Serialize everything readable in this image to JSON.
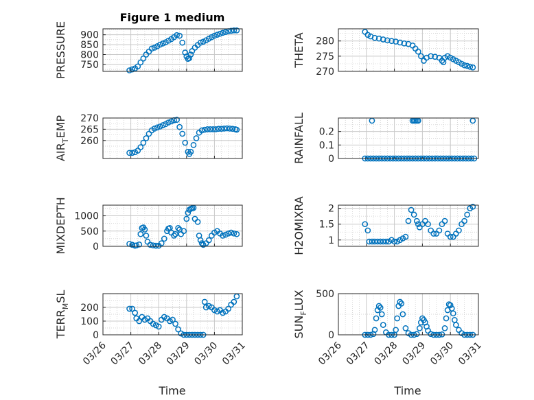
{
  "figure": {
    "title": "Figure 1 medium",
    "xlabel": "Time"
  },
  "colors": {
    "marker": "#0072BD",
    "axis": "#262626",
    "grid": "#c8c8c8"
  },
  "chart_data": [
    {
      "type": "scatter",
      "title": "Figure 1 medium",
      "ylabel": "PRESSURE",
      "ylim": [
        715,
        930
      ],
      "yticks": [
        750,
        800,
        850,
        900
      ],
      "xlim": [
        26,
        31
      ],
      "x": [
        26.95,
        27.05,
        27.15,
        27.25,
        27.35,
        27.45,
        27.55,
        27.65,
        27.75,
        27.85,
        27.95,
        28.05,
        28.15,
        28.25,
        28.35,
        28.45,
        28.55,
        28.65,
        28.75,
        28.85,
        28.95,
        29.0,
        29.05,
        29.1,
        29.15,
        29.2,
        29.3,
        29.4,
        29.5,
        29.6,
        29.7,
        29.8,
        29.9,
        30.0,
        30.1,
        30.2,
        30.3,
        30.4,
        30.5,
        30.6,
        30.7,
        30.8
      ],
      "values": [
        720,
        725,
        730,
        740,
        760,
        780,
        800,
        815,
        830,
        835,
        842,
        850,
        856,
        862,
        870,
        878,
        888,
        898,
        895,
        860,
        810,
        790,
        778,
        782,
        800,
        818,
        835,
        848,
        860,
        865,
        872,
        880,
        888,
        895,
        900,
        905,
        910,
        914,
        918,
        920,
        922,
        922
      ]
    },
    {
      "type": "scatter",
      "ylabel": "THETA",
      "ylim": [
        270,
        284
      ],
      "yticks": [
        270,
        275,
        280
      ],
      "xlim": [
        26,
        31
      ],
      "x": [
        26.95,
        27.05,
        27.15,
        27.3,
        27.45,
        27.6,
        27.75,
        27.9,
        28.05,
        28.2,
        28.35,
        28.5,
        28.65,
        28.75,
        28.85,
        28.95,
        29.05,
        29.15,
        29.3,
        29.45,
        29.6,
        29.7,
        29.75,
        29.8,
        29.9,
        30.0,
        30.1,
        30.2,
        30.3,
        30.4,
        30.5,
        30.6,
        30.7,
        30.8
      ],
      "values": [
        283,
        282,
        281.5,
        281,
        280.8,
        280.5,
        280.2,
        280,
        279.8,
        279.5,
        279.2,
        279,
        278.5,
        277.5,
        276.5,
        275,
        273.5,
        274.5,
        275,
        274.8,
        274.5,
        273.5,
        273,
        274.5,
        275,
        274.5,
        274,
        273.5,
        273,
        272.5,
        272,
        271.8,
        271.5,
        271.3
      ]
    },
    {
      "type": "scatter",
      "ylabel": "AIR_TEMP",
      "ylim": [
        252,
        270
      ],
      "yticks": [
        260,
        265,
        270
      ],
      "xlim": [
        26,
        31
      ],
      "x": [
        26.95,
        27.05,
        27.15,
        27.25,
        27.35,
        27.45,
        27.55,
        27.65,
        27.75,
        27.85,
        27.95,
        28.05,
        28.15,
        28.25,
        28.35,
        28.45,
        28.55,
        28.65,
        28.75,
        28.85,
        28.95,
        29.05,
        29.1,
        29.15,
        29.25,
        29.35,
        29.45,
        29.55,
        29.65,
        29.75,
        29.85,
        29.95,
        30.05,
        30.15,
        30.25,
        30.35,
        30.45,
        30.55,
        30.65,
        30.75,
        30.8
      ],
      "values": [
        254.5,
        254.5,
        254.8,
        255.5,
        257,
        259,
        261,
        263,
        264.5,
        265.3,
        265.8,
        266.2,
        266.8,
        267.3,
        268,
        268.5,
        269,
        269.2,
        266,
        263,
        259,
        255,
        254,
        255,
        258,
        261,
        263.5,
        264.5,
        264.8,
        265,
        265,
        265,
        265,
        265.2,
        265.2,
        265.3,
        265.4,
        265.3,
        265.2,
        265,
        264.8
      ]
    },
    {
      "type": "scatter",
      "ylabel": "RAINFALL",
      "ylim": [
        0,
        0.3
      ],
      "yticks": [
        0,
        0.1,
        0.2
      ],
      "xlim": [
        26,
        31
      ],
      "x": [
        26.95,
        27.05,
        27.15,
        27.25,
        27.35,
        27.45,
        27.55,
        27.65,
        27.75,
        27.85,
        27.95,
        28.05,
        28.15,
        28.25,
        28.35,
        28.45,
        28.55,
        28.65,
        28.75,
        28.85,
        28.95,
        29.05,
        29.15,
        29.25,
        29.35,
        29.45,
        29.55,
        29.65,
        29.75,
        29.85,
        29.95,
        30.05,
        30.15,
        30.25,
        30.35,
        30.45,
        30.55,
        30.65,
        30.75,
        30.85,
        27.2,
        28.65,
        28.7,
        28.75,
        28.8,
        28.85,
        30.8
      ],
      "values": [
        0,
        0,
        0,
        0,
        0,
        0,
        0,
        0,
        0,
        0,
        0,
        0,
        0,
        0,
        0,
        0,
        0,
        0,
        0,
        0,
        0,
        0,
        0,
        0,
        0,
        0,
        0,
        0,
        0,
        0,
        0,
        0,
        0,
        0,
        0,
        0,
        0,
        0,
        0,
        0,
        0.28,
        0.28,
        0.28,
        0.28,
        0.28,
        0.28,
        0.28
      ]
    },
    {
      "type": "scatter",
      "ylabel": "MIXDEPTH",
      "ylim": [
        0,
        1350
      ],
      "yticks": [
        0,
        500,
        1000
      ],
      "xlim": [
        26,
        31
      ],
      "x": [
        26.95,
        27.05,
        27.15,
        27.2,
        27.3,
        27.35,
        27.4,
        27.45,
        27.5,
        27.55,
        27.6,
        27.7,
        27.8,
        27.9,
        28.0,
        28.1,
        28.2,
        28.3,
        28.35,
        28.4,
        28.45,
        28.55,
        28.6,
        28.7,
        28.75,
        28.8,
        28.9,
        29.0,
        29.05,
        29.1,
        29.15,
        29.2,
        29.25,
        29.3,
        29.4,
        29.45,
        29.5,
        29.55,
        29.6,
        29.7,
        29.8,
        29.9,
        30.0,
        30.1,
        30.2,
        30.3,
        30.4,
        30.5,
        30.6,
        30.7,
        30.8
      ],
      "values": [
        80,
        50,
        20,
        30,
        60,
        400,
        600,
        620,
        550,
        350,
        150,
        50,
        30,
        20,
        20,
        100,
        250,
        500,
        580,
        600,
        450,
        350,
        400,
        600,
        550,
        400,
        500,
        900,
        1100,
        1200,
        1230,
        1250,
        1260,
        900,
        800,
        350,
        200,
        100,
        50,
        100,
        200,
        350,
        450,
        500,
        420,
        350,
        380,
        420,
        450,
        420,
        400
      ]
    },
    {
      "type": "scatter",
      "ylabel": "H2OMIXRA",
      "ylim": [
        0.8,
        2.1
      ],
      "yticks": [
        1,
        1.5,
        2
      ],
      "xlim": [
        26,
        31
      ],
      "x": [
        26.95,
        27.05,
        27.1,
        27.2,
        27.3,
        27.4,
        27.5,
        27.6,
        27.7,
        27.8,
        27.9,
        28.0,
        28.1,
        28.2,
        28.3,
        28.4,
        28.5,
        28.6,
        28.7,
        28.8,
        28.85,
        28.9,
        29.0,
        29.1,
        29.2,
        29.3,
        29.4,
        29.5,
        29.6,
        29.7,
        29.8,
        29.9,
        30.0,
        30.1,
        30.2,
        30.3,
        30.4,
        30.5,
        30.6,
        30.7,
        30.8
      ],
      "values": [
        1.5,
        1.3,
        0.95,
        0.95,
        0.95,
        0.95,
        0.95,
        0.95,
        0.95,
        0.95,
        1.0,
        0.95,
        0.95,
        1.0,
        1.05,
        1.1,
        1.6,
        1.95,
        1.8,
        1.6,
        1.5,
        1.4,
        1.5,
        1.6,
        1.5,
        1.3,
        1.2,
        1.2,
        1.3,
        1.5,
        1.6,
        1.2,
        1.1,
        1.1,
        1.2,
        1.3,
        1.5,
        1.6,
        1.8,
        2.0,
        2.05
      ]
    },
    {
      "type": "scatter",
      "ylabel": "TERR_MSL",
      "ylim": [
        0,
        300
      ],
      "yticks": [
        0,
        100,
        200
      ],
      "xlim": [
        26,
        31
      ],
      "x": [
        26.95,
        27.05,
        27.15,
        27.2,
        27.3,
        27.4,
        27.5,
        27.6,
        27.7,
        27.8,
        27.9,
        28.0,
        28.1,
        28.2,
        28.3,
        28.4,
        28.5,
        28.6,
        28.7,
        28.8,
        28.9,
        29.0,
        29.1,
        29.2,
        29.3,
        29.4,
        29.5,
        29.6,
        29.65,
        29.7,
        29.8,
        29.9,
        30.0,
        30.1,
        30.2,
        30.3,
        30.4,
        30.5,
        30.6,
        30.7,
        30.8
      ],
      "values": [
        190,
        190,
        160,
        120,
        100,
        130,
        110,
        120,
        100,
        80,
        70,
        60,
        110,
        130,
        120,
        100,
        110,
        80,
        40,
        10,
        0,
        0,
        0,
        0,
        0,
        0,
        0,
        0,
        240,
        200,
        210,
        200,
        180,
        170,
        180,
        160,
        170,
        190,
        220,
        240,
        280
      ]
    },
    {
      "type": "scatter",
      "ylabel": "SUN_FLUX",
      "ylim": [
        0,
        500
      ],
      "yticks": [
        0,
        500
      ],
      "xlim": [
        26,
        31
      ],
      "xticks": [
        "03/26",
        "03/27",
        "03/28",
        "03/29",
        "03/30",
        "03/31"
      ],
      "x": [
        26.95,
        27.05,
        27.15,
        27.25,
        27.3,
        27.35,
        27.4,
        27.45,
        27.5,
        27.55,
        27.6,
        27.7,
        27.8,
        27.9,
        28.0,
        28.05,
        28.1,
        28.15,
        28.2,
        28.25,
        28.3,
        28.4,
        28.5,
        28.6,
        28.7,
        28.8,
        28.9,
        28.95,
        29.0,
        29.05,
        29.1,
        29.15,
        29.2,
        29.3,
        29.4,
        29.5,
        29.6,
        29.7,
        29.8,
        29.85,
        29.9,
        29.95,
        30.0,
        30.05,
        30.1,
        30.15,
        30.2,
        30.3,
        30.4,
        30.5,
        30.6,
        30.7,
        30.8
      ],
      "values": [
        0,
        0,
        0,
        10,
        60,
        200,
        300,
        350,
        330,
        250,
        120,
        30,
        0,
        0,
        0,
        60,
        200,
        350,
        400,
        380,
        250,
        80,
        20,
        0,
        0,
        10,
        80,
        150,
        200,
        180,
        150,
        100,
        50,
        10,
        0,
        0,
        0,
        5,
        80,
        200,
        300,
        370,
        360,
        320,
        260,
        180,
        120,
        60,
        20,
        0,
        0,
        0,
        0
      ]
    }
  ]
}
